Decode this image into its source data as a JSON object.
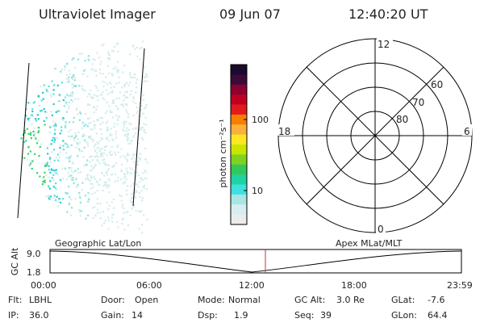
{
  "header": {
    "instrument": "Ultraviolet Imager",
    "date": "09 Jun 07",
    "time": "12:40:20 UT"
  },
  "colorbar": {
    "unit_label": "photon cm⁻²s⁻¹",
    "ticks": [
      "100",
      "10"
    ],
    "colors_top_to_bottom": [
      "#1a0a2e",
      "#3b0a3a",
      "#8b0030",
      "#c00020",
      "#e31a1c",
      "#f77f00",
      "#fbb03b",
      "#fde725",
      "#c8e600",
      "#7ed321",
      "#34c759",
      "#1fd3a0",
      "#3ee0e0",
      "#a8e6e6",
      "#d8eeee",
      "#ececec"
    ]
  },
  "polar": {
    "mlt_labels": {
      "top": "12",
      "left": "18",
      "right": "6",
      "bottom": "0"
    },
    "lat_labels": [
      "60",
      "70",
      "80"
    ]
  },
  "timeline": {
    "left_title": "Geographic Lat/Lon",
    "right_title": "Apex MLat/MLT",
    "axis_title": "GC Alt",
    "y_ticks": [
      "9.0",
      "1.8"
    ],
    "x_ticks": [
      "00:00",
      "06:00",
      "12:00",
      "18:00",
      "23:59"
    ],
    "marker_color": "#c0392b"
  },
  "footer": {
    "row1": [
      {
        "key": "Flt:",
        "val": "LBHL"
      },
      {
        "key": "Door:",
        "val": "Open"
      },
      {
        "key": "Mode:",
        "val": "Normal"
      },
      {
        "key": "GC Alt:",
        "val": "3.0 Re"
      },
      {
        "key": "GLat:",
        "val": "-7.6"
      }
    ],
    "row2": [
      {
        "key": "IP:",
        "val": "36.0"
      },
      {
        "key": "Gain:",
        "val": "14"
      },
      {
        "key": "Dsp:",
        "val": "1.9"
      },
      {
        "key": "Seq:",
        "val": "39"
      },
      {
        "key": "GLon:",
        "val": "64.4"
      }
    ]
  }
}
